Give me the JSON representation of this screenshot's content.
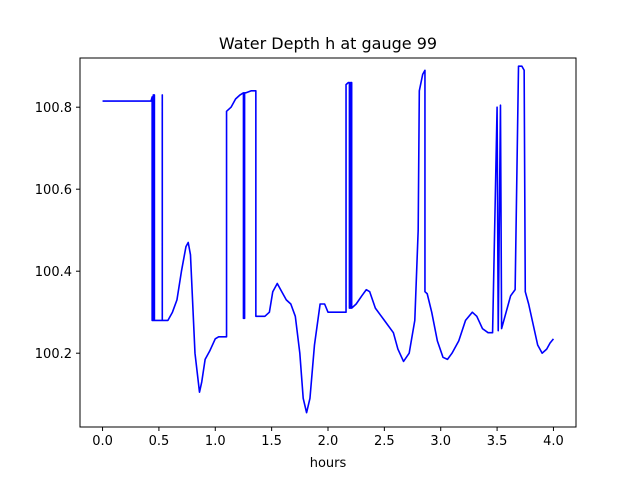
{
  "chart_data": {
    "type": "line",
    "title": "Water Depth h at gauge 99",
    "xlabel": "hours",
    "ylabel": "",
    "xlim": [
      -0.2,
      4.2
    ],
    "ylim": [
      100.02,
      100.92
    ],
    "xticks": [
      0.0,
      0.5,
      1.0,
      1.5,
      2.0,
      2.5,
      3.0,
      3.5,
      4.0
    ],
    "xtick_labels": [
      "0.0",
      "0.5",
      "1.0",
      "1.5",
      "2.0",
      "2.5",
      "3.0",
      "3.5",
      "4.0"
    ],
    "yticks": [
      100.2,
      100.4,
      100.6,
      100.8
    ],
    "ytick_labels": [
      "100.2",
      "100.4",
      "100.6",
      "100.8"
    ],
    "grid": false,
    "color": "#0000ff",
    "series": [
      {
        "x": [
          0.0,
          0.2,
          0.43,
          0.44,
          0.44,
          0.45,
          0.45,
          0.46,
          0.46,
          0.53,
          0.53,
          0.53,
          0.53,
          0.58,
          0.62,
          0.66,
          0.7,
          0.74,
          0.76,
          0.78,
          0.82,
          0.86,
          0.88,
          0.91,
          0.95,
          1.0,
          1.03,
          1.06,
          1.1,
          1.1,
          1.14,
          1.18,
          1.22,
          1.25,
          1.25,
          1.26,
          1.26,
          1.27,
          1.32,
          1.34,
          1.36,
          1.36,
          1.4,
          1.44,
          1.48,
          1.51,
          1.55,
          1.59,
          1.63,
          1.67,
          1.71,
          1.75,
          1.78,
          1.81,
          1.84,
          1.88,
          1.93,
          1.97,
          2.0,
          2.03,
          2.08,
          2.12,
          2.15,
          2.16,
          2.16,
          2.18,
          2.19,
          2.19,
          2.2,
          2.2,
          2.21,
          2.21,
          2.25,
          2.3,
          2.34,
          2.37,
          2.42,
          2.5,
          2.58,
          2.62,
          2.67,
          2.72,
          2.77,
          2.8,
          2.81,
          2.81,
          2.84,
          2.86,
          2.86,
          2.88,
          2.92,
          2.97,
          3.02,
          3.06,
          3.1,
          3.16,
          3.22,
          3.28,
          3.32,
          3.37,
          3.42,
          3.46,
          3.5,
          3.5,
          3.51,
          3.51,
          3.53,
          3.53,
          3.54,
          3.58,
          3.62,
          3.66,
          3.69,
          3.69,
          3.72,
          3.74,
          3.75,
          3.78,
          3.82,
          3.86,
          3.9,
          3.94,
          3.97,
          4.0
        ],
        "y": [
          100.815,
          100.815,
          100.815,
          100.825,
          100.28,
          100.28,
          100.83,
          100.83,
          100.28,
          100.28,
          100.83,
          100.83,
          100.28,
          100.28,
          100.3,
          100.33,
          100.4,
          100.46,
          100.47,
          100.44,
          100.2,
          100.105,
          100.13,
          100.185,
          100.205,
          100.235,
          100.24,
          100.24,
          100.24,
          100.79,
          100.8,
          100.82,
          100.83,
          100.835,
          100.285,
          100.285,
          100.835,
          100.835,
          100.84,
          100.84,
          100.84,
          100.29,
          100.29,
          100.29,
          100.3,
          100.35,
          100.37,
          100.35,
          100.33,
          100.32,
          100.29,
          100.2,
          100.09,
          100.055,
          100.09,
          100.22,
          100.32,
          100.32,
          100.3,
          100.3,
          100.3,
          100.3,
          100.3,
          100.3,
          100.855,
          100.86,
          100.86,
          100.31,
          100.31,
          100.86,
          100.86,
          100.31,
          100.32,
          100.34,
          100.355,
          100.35,
          100.31,
          100.28,
          100.25,
          100.21,
          100.18,
          100.2,
          100.28,
          100.5,
          100.84,
          100.84,
          100.88,
          100.89,
          100.35,
          100.345,
          100.3,
          100.23,
          100.19,
          100.185,
          100.2,
          100.23,
          100.28,
          100.3,
          100.29,
          100.26,
          100.25,
          100.25,
          100.8,
          100.8,
          100.255,
          100.255,
          100.805,
          100.805,
          100.26,
          100.3,
          100.34,
          100.355,
          100.9,
          100.9,
          100.9,
          100.89,
          100.35,
          100.32,
          100.27,
          100.22,
          100.2,
          100.21,
          100.225,
          100.235
        ]
      }
    ]
  }
}
